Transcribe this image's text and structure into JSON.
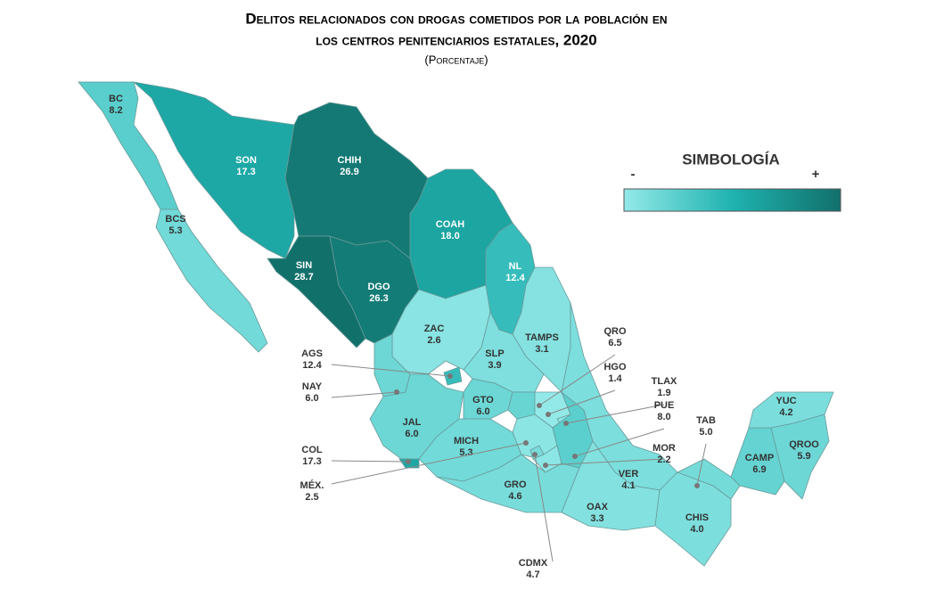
{
  "chart_data": {
    "type": "choropleth",
    "title_lines": [
      "Delitos relacionados con drogas cometidos por la población en",
      "los centros penitenciarios estatales, 2020"
    ],
    "subtitle": "(Porcentaje)",
    "legend": {
      "title": "SIMBOLOGÍA",
      "low": "-",
      "high": "+"
    },
    "color_scale": [
      "#93e9e8",
      "#1fb3b0",
      "#12706b"
    ],
    "categories": [
      "BC",
      "BCS",
      "SON",
      "CHIH",
      "COAH",
      "NL",
      "SIN",
      "DGO",
      "ZAC",
      "TAMPS",
      "SLP",
      "AGS",
      "NAY",
      "JAL",
      "COL",
      "GTO",
      "QRO",
      "HGO",
      "MICH",
      "MÉX.",
      "CDMX",
      "TLAX",
      "PUE",
      "MOR",
      "GRO",
      "VER",
      "OAX",
      "CHIS",
      "TAB",
      "CAMP",
      "YUC",
      "QROO"
    ],
    "values": [
      8.2,
      5.3,
      17.3,
      26.9,
      18.0,
      12.4,
      28.7,
      26.3,
      2.6,
      3.1,
      3.9,
      12.4,
      6.0,
      6.0,
      17.3,
      6.0,
      6.5,
      1.4,
      5.3,
      2.5,
      4.7,
      1.9,
      8.0,
      2.2,
      4.6,
      4.1,
      3.3,
      4.0,
      5.0,
      6.9,
      4.2,
      5.9
    ],
    "value_labels": [
      "8.2",
      "5.3",
      "17.3",
      "26.9",
      "18.0",
      "12.4",
      "28.7",
      "26.3",
      "2.6",
      "3.1",
      "3.9",
      "12.4",
      "6.0",
      "6.0",
      "17.3",
      "6.0",
      "6.5",
      "1.4",
      "5.3",
      "2.5",
      "4.7",
      "1.9",
      "8.0",
      "2.2",
      "4.6",
      "4.1",
      "3.3",
      "4.0",
      "5.0",
      "6.9",
      "4.2",
      "5.9"
    ]
  }
}
